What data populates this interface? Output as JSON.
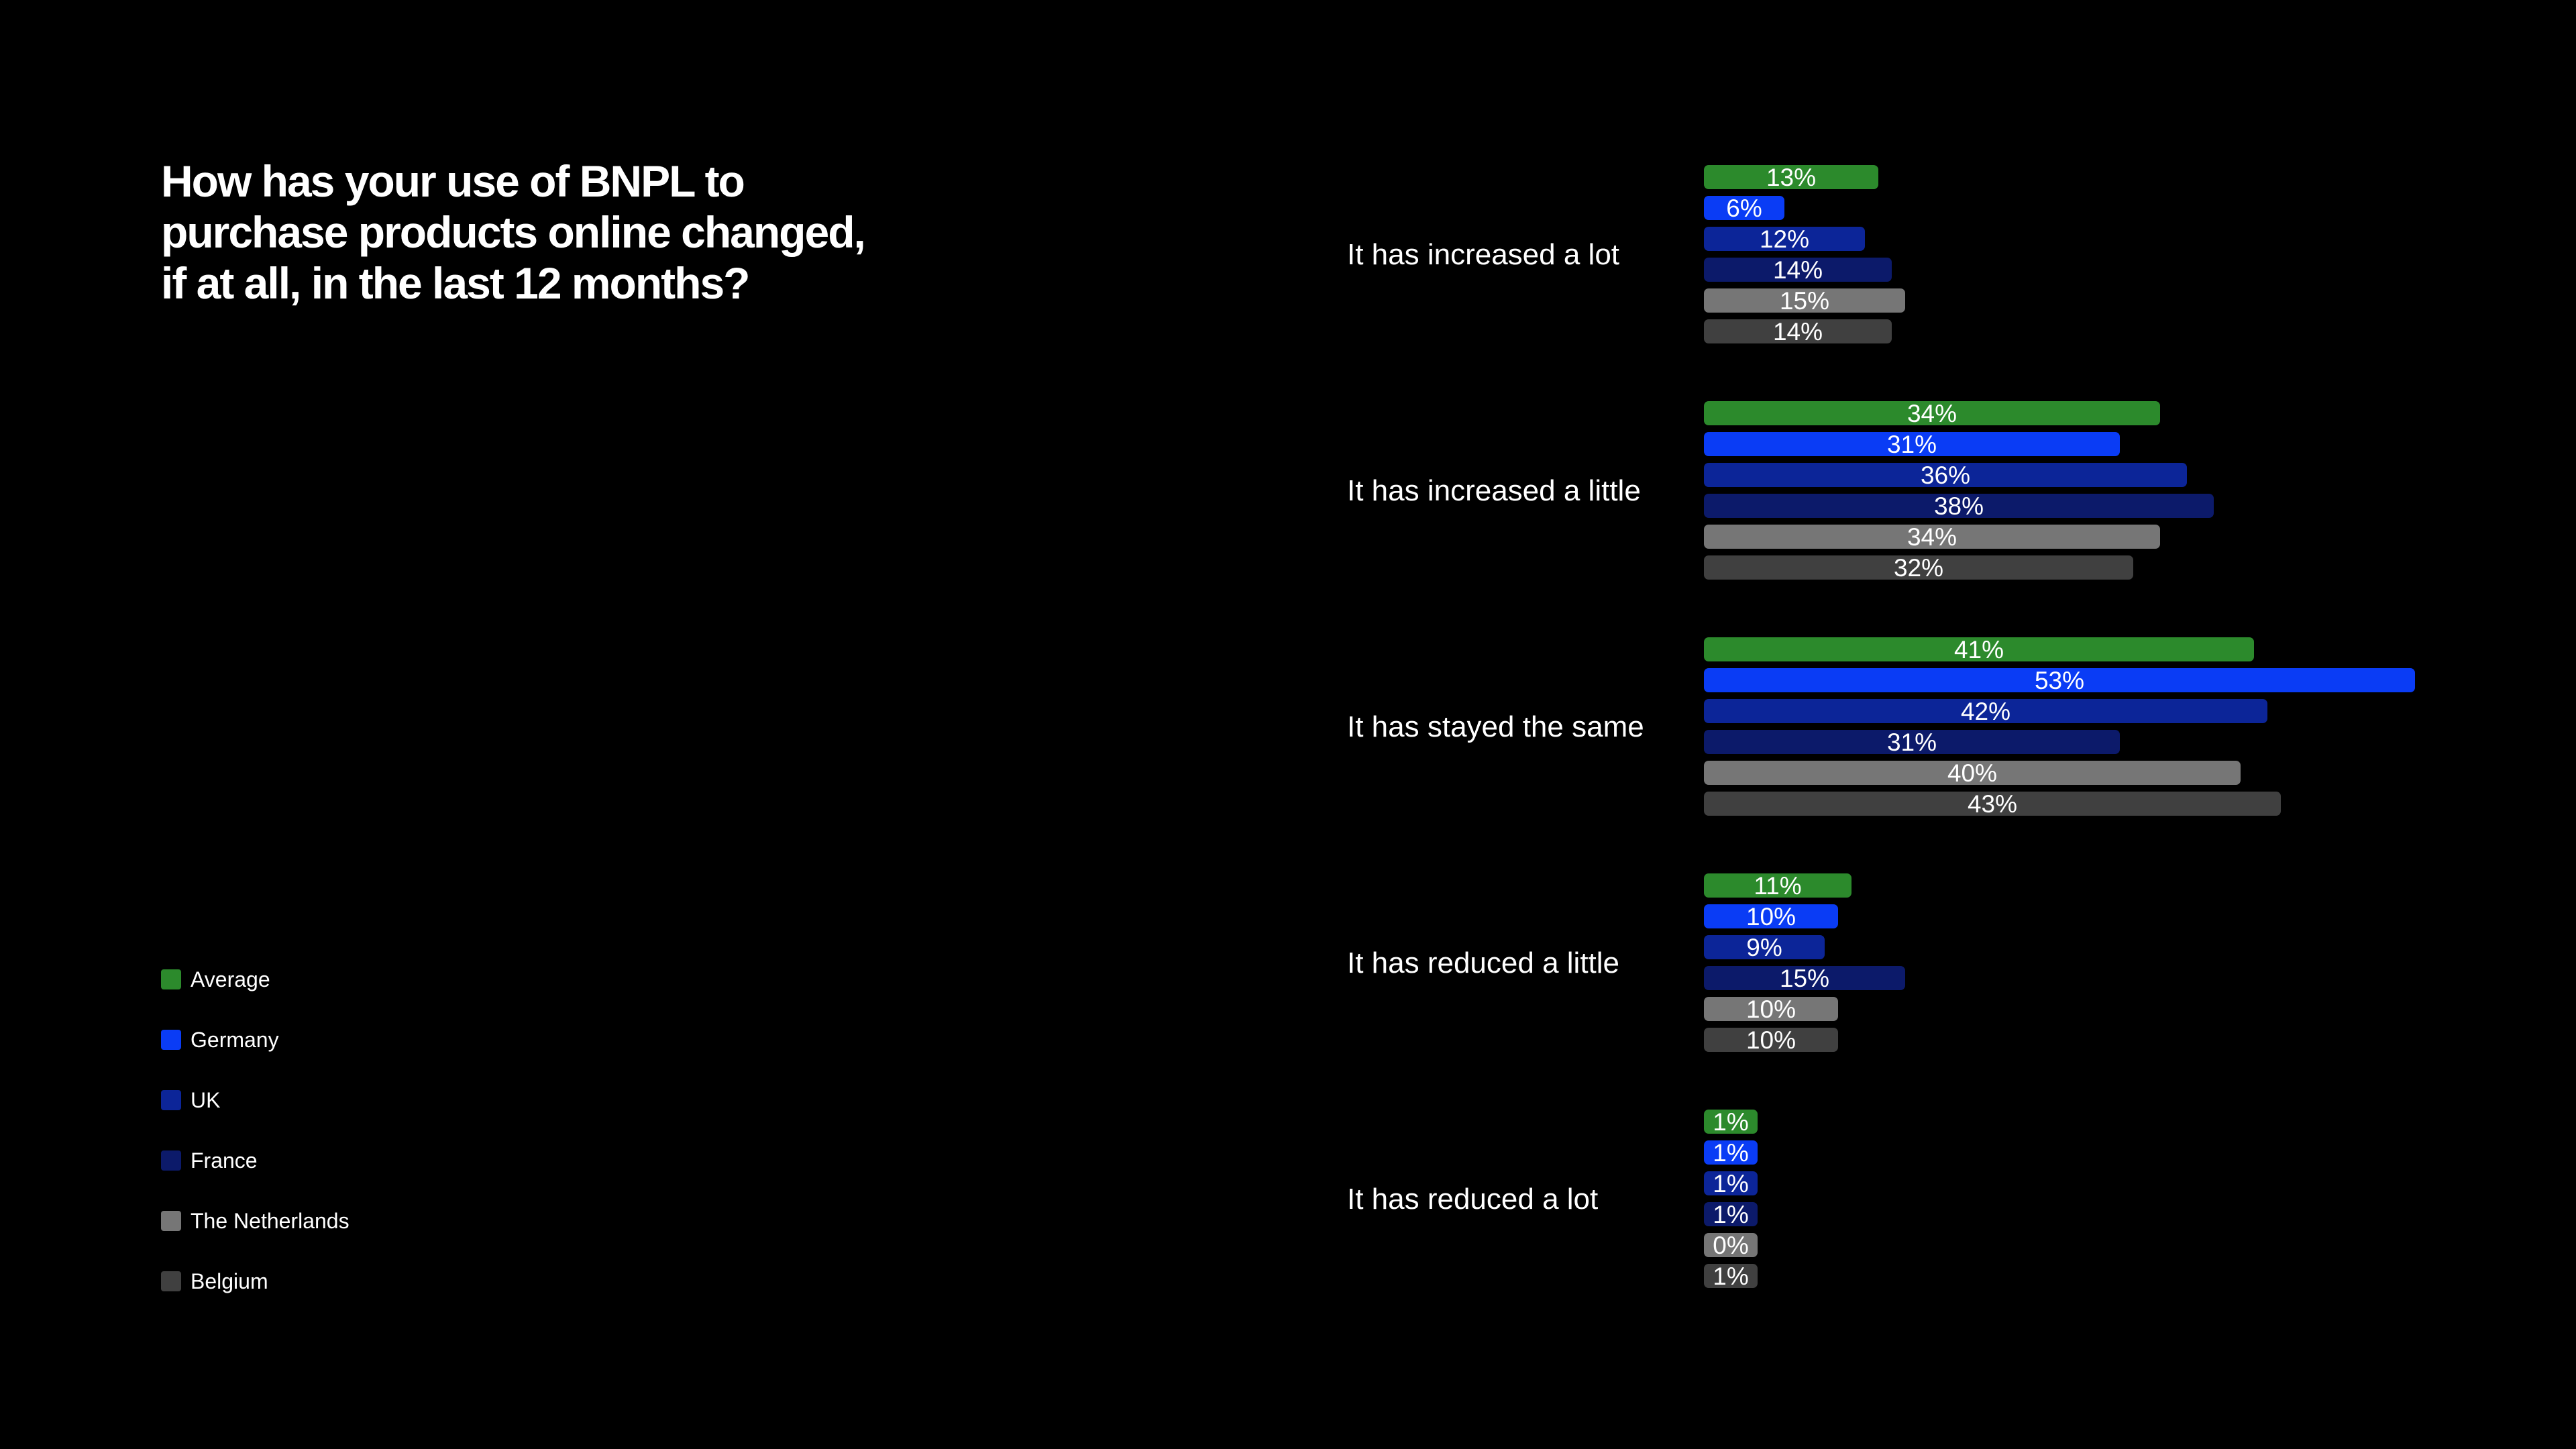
{
  "chart_data": {
    "type": "bar",
    "orientation": "horizontal",
    "title": "How has your use of BNPL to purchase products online changed, if at all, in the last 12 months?",
    "categories": [
      "It has increased a lot",
      "It has increased a little",
      "It has stayed the same",
      "It has reduced a little",
      "It has reduced a lot"
    ],
    "series": [
      {
        "name": "Average",
        "color": "#2c8a2c",
        "values": [
          13,
          34,
          41,
          11,
          1
        ]
      },
      {
        "name": "Germany",
        "color": "#0a3cf5",
        "values": [
          6,
          31,
          53,
          10,
          1
        ]
      },
      {
        "name": "UK",
        "color": "#0c2598",
        "values": [
          12,
          36,
          42,
          9,
          1
        ]
      },
      {
        "name": "France",
        "color": "#0c1a6a",
        "values": [
          14,
          38,
          31,
          15,
          1
        ]
      },
      {
        "name": "The Netherlands",
        "color": "#767676",
        "values": [
          15,
          34,
          40,
          10,
          0
        ]
      },
      {
        "name": "Belgium",
        "color": "#404040",
        "values": [
          14,
          32,
          43,
          10,
          1
        ]
      }
    ],
    "value_suffix": "%",
    "xlim": [
      0,
      53
    ],
    "legend_position": "bottom-left",
    "grid": false,
    "xlabel": "",
    "ylabel": ""
  }
}
